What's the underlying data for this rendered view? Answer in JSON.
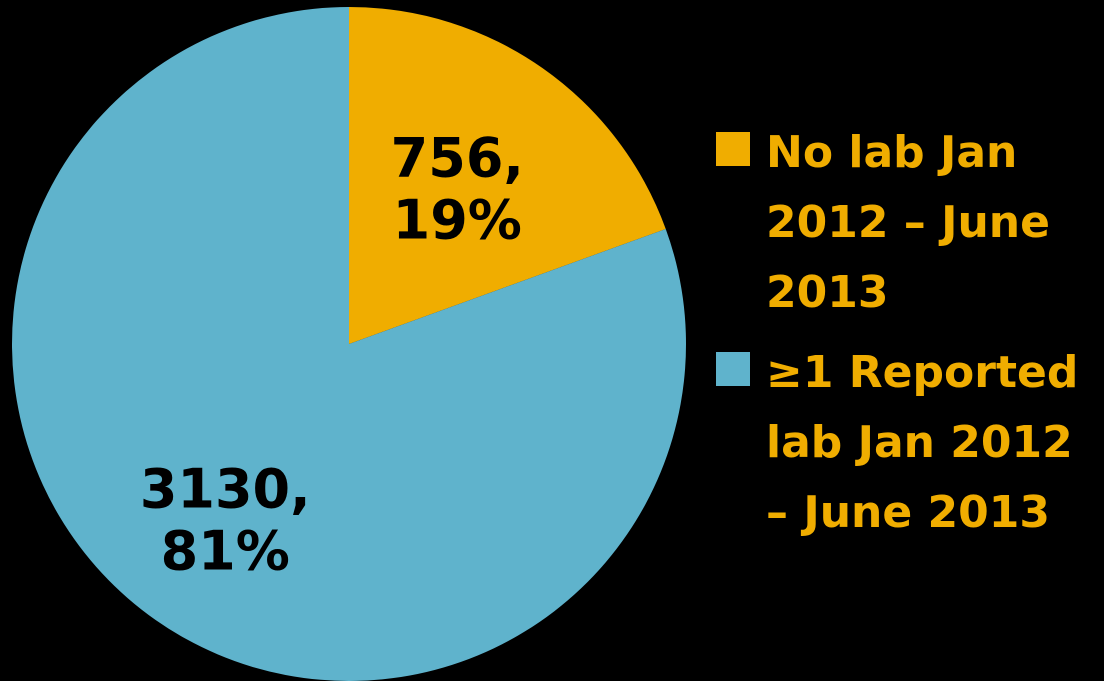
{
  "chart_data": {
    "type": "pie",
    "title": "",
    "slices": [
      {
        "name": "No lab Jan 2012 – June 2013",
        "value": 756,
        "percent": 19,
        "label": "756,\n19%",
        "color": "#f0ad00"
      },
      {
        "name": "≥1 Reported lab Jan 2012 – June 2013",
        "value": 3130,
        "percent": 81,
        "label": "3130,\n81%",
        "color": "#5fb3cc"
      }
    ],
    "legend": {
      "placement": "right",
      "items": [
        {
          "label": "No lab Jan\n2012 – June\n2013",
          "color": "#f0ad00"
        },
        {
          "label": "≥1 Reported\nlab Jan 2012\n– June 2013",
          "color": "#5fb3cc"
        }
      ]
    }
  }
}
